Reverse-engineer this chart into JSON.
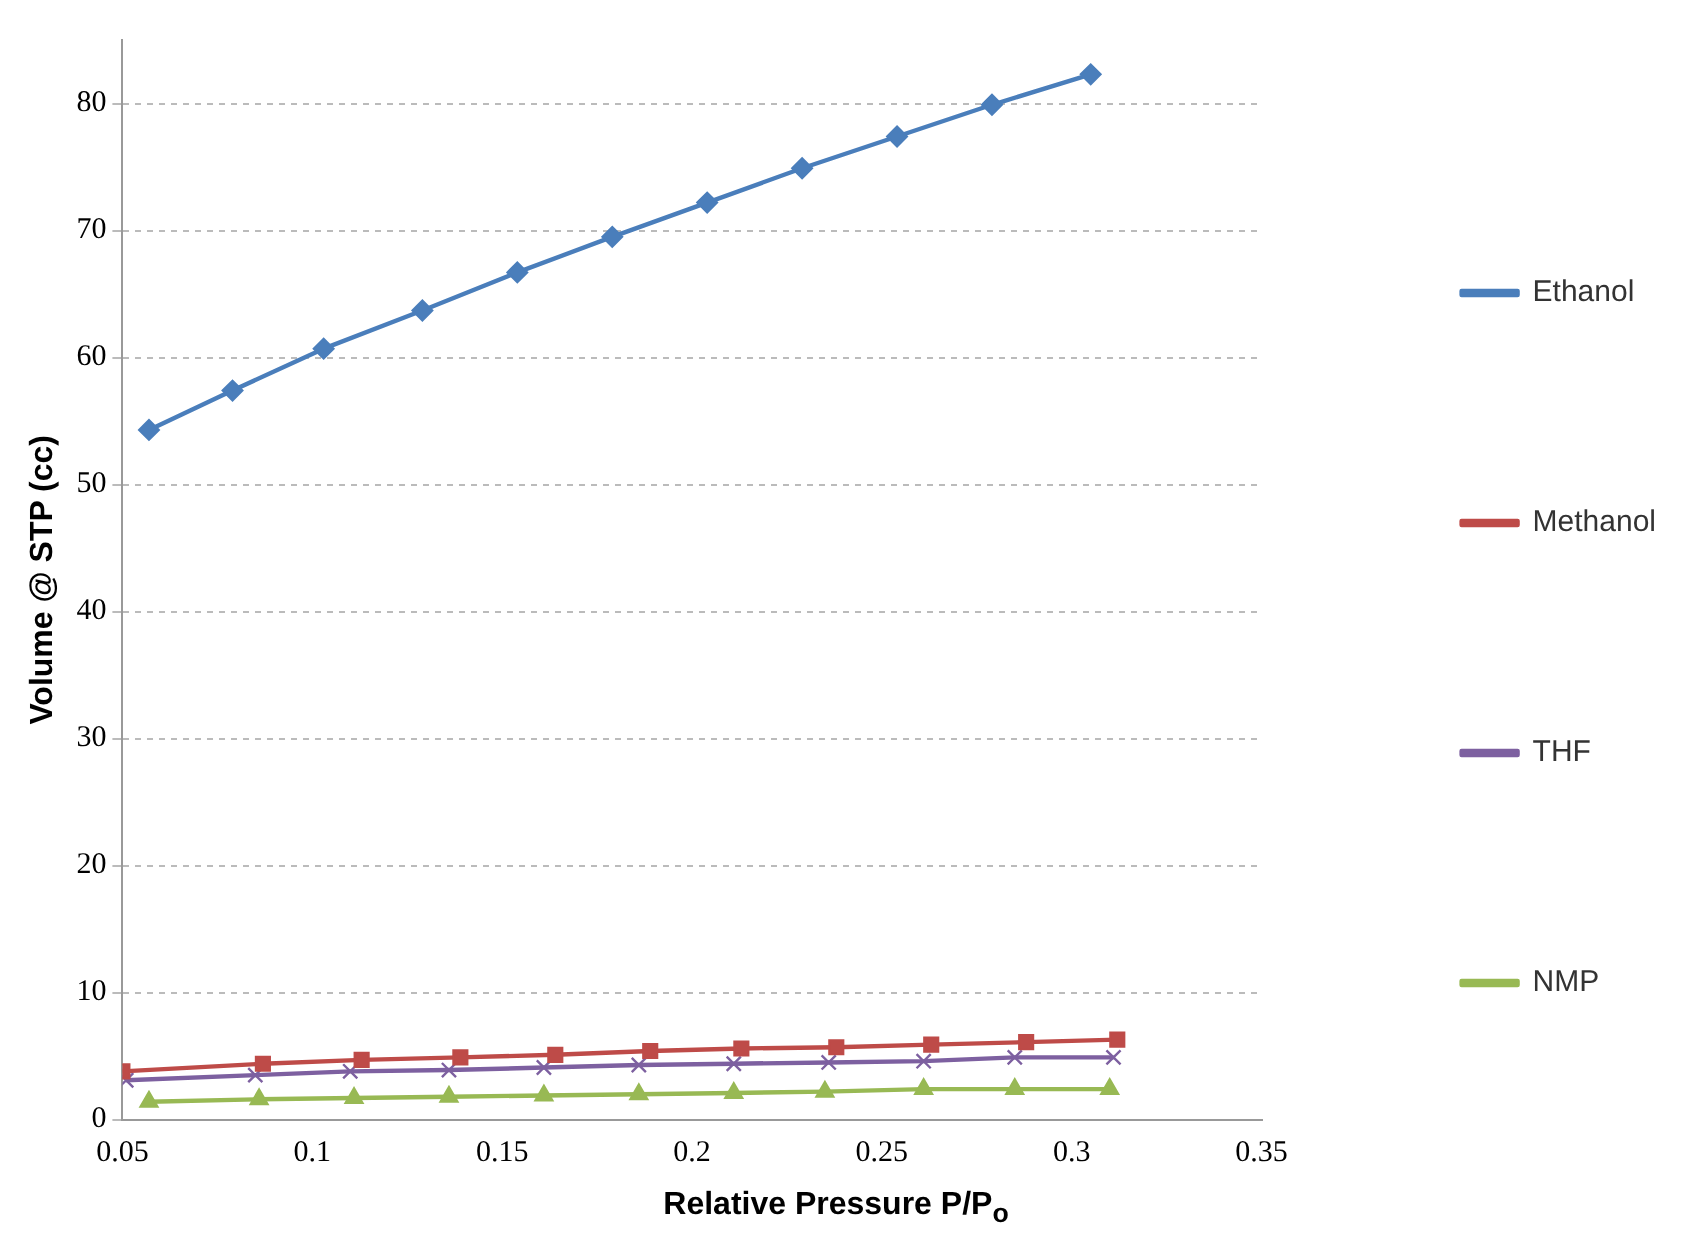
{
  "chart_data": {
    "type": "line",
    "xlabel": "Relative Pressure P/P$_{o}$",
    "ylabel": "Volume @ STP (cc)",
    "xlim": [
      0.05,
      0.35
    ],
    "xticks": [
      0.05,
      0.1,
      0.15,
      0.2,
      0.25,
      0.3,
      0.35
    ],
    "ylim": [
      0,
      85
    ],
    "yticks": [
      0,
      10,
      20,
      30,
      40,
      50,
      60,
      70,
      80
    ],
    "grid": "y",
    "legend": "right",
    "line_style": "solid",
    "series": [
      {
        "name": "Ethanol",
        "color": "#4a7ebb",
        "marker": "diamond",
        "x": [
          0.057,
          0.079,
          0.103,
          0.129,
          0.154,
          0.179,
          0.204,
          0.229,
          0.254,
          0.279,
          0.305
        ],
        "values": [
          54.3,
          57.4,
          60.7,
          63.7,
          66.7,
          69.5,
          72.2,
          74.9,
          77.4,
          79.9,
          82.3
        ]
      },
      {
        "name": "Methanol",
        "color": "#be4b48",
        "marker": "square",
        "x": [
          0.05,
          0.087,
          0.113,
          0.139,
          0.164,
          0.189,
          0.213,
          0.238,
          0.263,
          0.288,
          0.312
        ],
        "values": [
          3.8,
          4.4,
          4.7,
          4.9,
          5.1,
          5.4,
          5.6,
          5.7,
          5.9,
          6.1,
          6.3
        ]
      },
      {
        "name": "THF",
        "color": "#7d60a0",
        "marker": "cross",
        "x": [
          0.051,
          0.085,
          0.11,
          0.136,
          0.161,
          0.186,
          0.211,
          0.236,
          0.261,
          0.285,
          0.311
        ],
        "values": [
          3.1,
          3.5,
          3.8,
          3.9,
          4.1,
          4.3,
          4.4,
          4.5,
          4.6,
          4.9,
          4.9
        ]
      },
      {
        "name": "NMP",
        "color": "#98b954",
        "marker": "triangle",
        "x": [
          0.057,
          0.086,
          0.111,
          0.136,
          0.161,
          0.186,
          0.211,
          0.235,
          0.261,
          0.285,
          0.31
        ],
        "values": [
          1.4,
          1.6,
          1.7,
          1.8,
          1.9,
          2.0,
          2.1,
          2.2,
          2.4,
          2.4,
          2.4
        ]
      }
    ]
  }
}
